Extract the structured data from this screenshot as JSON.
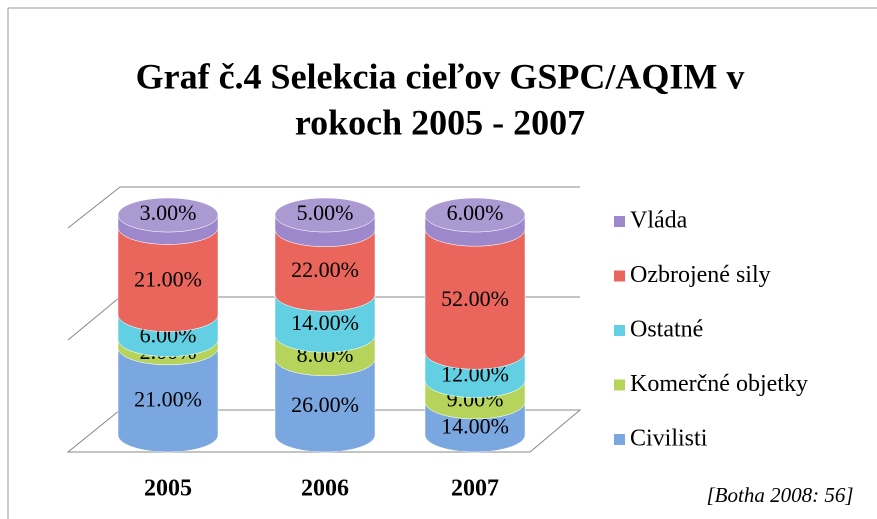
{
  "chart_data": {
    "type": "bar",
    "stacked": "percent",
    "shape": "cylinder",
    "title": "Graf č.4 Selekcia cieľov GSPC/AQIM v rokoch 2005 - 2007",
    "categories": [
      "2005",
      "2006",
      "2007"
    ],
    "series": [
      {
        "name": "Civilisti",
        "color": "#7ba7e1",
        "values": [
          21,
          26,
          14
        ],
        "value_labels": [
          "21.00%",
          "26.00%",
          "14.00%"
        ]
      },
      {
        "name": "Komerčné objetky",
        "color": "#b6d35c",
        "values": [
          2,
          8,
          9
        ],
        "value_labels": [
          "2.00%",
          "8.00%",
          "9.00%"
        ]
      },
      {
        "name": "Ostatné",
        "color": "#62d0e2",
        "values": [
          6,
          14,
          12
        ],
        "value_labels": [
          "6.00%",
          "14.00%",
          "12.00%"
        ]
      },
      {
        "name": "Ozbrojené sily",
        "color": "#ea655c",
        "values": [
          21,
          22,
          52
        ],
        "value_labels": [
          "21.00%",
          "22.00%",
          "52.00%"
        ]
      },
      {
        "name": "Vláda",
        "color": "#9d88cb",
        "values": [
          3,
          5,
          6
        ],
        "value_labels": [
          "3.00%",
          "5.00%",
          "6.00%"
        ]
      }
    ],
    "legend": "right",
    "source": "[Botha 2008: 56]"
  }
}
